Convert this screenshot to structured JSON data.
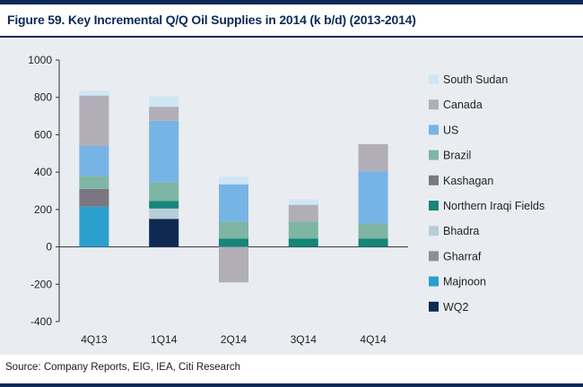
{
  "title": "Figure 59. Key Incremental Q/Q Oil Supplies in 2014 (k b/d) (2013-2014)",
  "source": "Source: Company Reports, EIG, IEA, Citi Research",
  "chart_data": {
    "type": "bar",
    "stacked": true,
    "title": "Figure 59. Key Incremental Q/Q Oil Supplies in 2014 (k b/d) (2013-2014)",
    "xlabel": "",
    "ylabel": "",
    "categories": [
      "4Q13",
      "1Q14",
      "2Q14",
      "3Q14",
      "4Q14"
    ],
    "ylim": [
      -400,
      1000
    ],
    "yticks": [
      1000,
      800,
      600,
      400,
      200,
      0,
      -200,
      -400
    ],
    "grid": false,
    "legend_position": "right",
    "series": [
      {
        "name": "WQ2",
        "color": "#0e2a52",
        "values": [
          0,
          150,
          0,
          0,
          0
        ]
      },
      {
        "name": "Majnoon",
        "color": "#2a9fce",
        "values": [
          215,
          0,
          0,
          0,
          0
        ]
      },
      {
        "name": "Gharraf",
        "color": "#8a8f98",
        "values": [
          0,
          0,
          0,
          0,
          0
        ]
      },
      {
        "name": "Bhadra",
        "color": "#b9cdd8",
        "values": [
          0,
          55,
          0,
          0,
          0
        ]
      },
      {
        "name": "Northern Iraqi Fields",
        "color": "#16857a",
        "values": [
          0,
          40,
          45,
          45,
          45
        ]
      },
      {
        "name": "Kashagan",
        "color": "#7c7582",
        "values": [
          95,
          0,
          0,
          0,
          0
        ]
      },
      {
        "name": "Brazil",
        "color": "#7fb5a4",
        "values": [
          70,
          100,
          90,
          90,
          80
        ]
      },
      {
        "name": "US",
        "color": "#77b4e6",
        "values": [
          160,
          330,
          200,
          0,
          280
        ]
      },
      {
        "name": "Canada",
        "color": "#b1aeb8",
        "values": [
          270,
          75,
          -190,
          90,
          145
        ]
      },
      {
        "name": "South Sudan",
        "color": "#cfe6f5",
        "values": [
          25,
          55,
          40,
          30,
          0
        ]
      }
    ]
  }
}
